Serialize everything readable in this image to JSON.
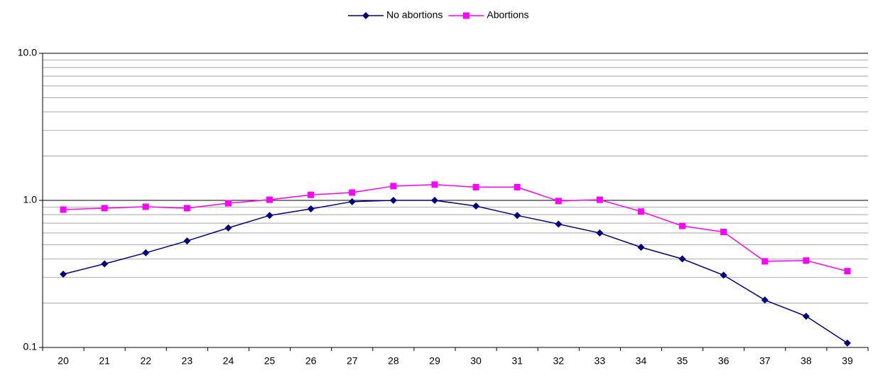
{
  "chart_data": {
    "type": "line",
    "categories": [
      "20",
      "21",
      "22",
      "23",
      "24",
      "25",
      "26",
      "27",
      "28",
      "29",
      "30",
      "31",
      "32",
      "33",
      "34",
      "35",
      "36",
      "37",
      "38",
      "39"
    ],
    "series": [
      {
        "name": "No abortions",
        "color": "#000080",
        "marker": "diamond",
        "values": [
          0.315,
          0.37,
          0.44,
          0.53,
          0.65,
          0.79,
          0.875,
          0.98,
          1.0,
          1.0,
          0.915,
          0.79,
          0.69,
          0.6,
          0.48,
          0.4,
          0.31,
          0.21,
          0.163,
          0.107
        ]
      },
      {
        "name": "Abortions",
        "color": "#ff00ff",
        "marker": "square",
        "values": [
          0.865,
          0.885,
          0.905,
          0.885,
          0.956,
          1.01,
          1.09,
          1.13,
          1.25,
          1.28,
          1.23,
          1.23,
          0.99,
          1.01,
          0.84,
          0.67,
          0.61,
          0.385,
          0.39,
          0.33
        ]
      }
    ],
    "log_scale": true,
    "ylim": [
      0.1,
      10
    ],
    "yticks": [
      0.1,
      {
        "value": 1,
        "label": "1.0"
      },
      {
        "value": 10,
        "label": "10.0"
      }
    ],
    "yminor": [
      0.2,
      0.3,
      0.4,
      0.5,
      0.6,
      0.7,
      0.8,
      0.9,
      2,
      3,
      4,
      5,
      6,
      7,
      8,
      9
    ],
    "grid": true,
    "legend": "top"
  }
}
